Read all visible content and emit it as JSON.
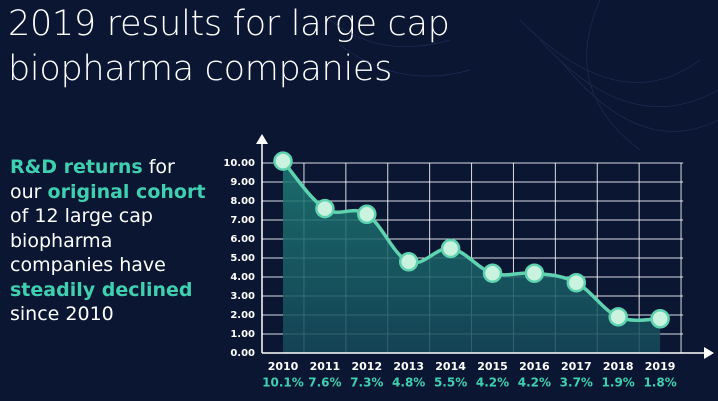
{
  "title_lines": [
    "2019 results for large cap",
    "biopharma companies"
  ],
  "text_block": {
    "lines": [
      [
        {
          "text": "R&D returns",
          "highlight": true
        },
        {
          "text": " for",
          "highlight": false
        }
      ],
      [
        {
          "text": "our ",
          "highlight": false
        },
        {
          "text": "original cohort",
          "highlight": true
        }
      ],
      [
        {
          "text": "of 12 large cap",
          "highlight": false
        }
      ],
      [
        {
          "text": "biopharma",
          "highlight": false
        }
      ],
      [
        {
          "text": "companies have",
          "highlight": false
        }
      ],
      [
        {
          "text": "steadily declined",
          "highlight": true
        }
      ],
      [
        {
          "text": "since 2010",
          "highlight": false
        }
      ]
    ]
  },
  "chart_data": {
    "type": "area",
    "categories": [
      "2010",
      "2011",
      "2012",
      "2013",
      "2014",
      "2015",
      "2016",
      "2017",
      "2018",
      "2019"
    ],
    "values": [
      10.1,
      7.6,
      7.3,
      4.8,
      5.5,
      4.2,
      4.2,
      3.7,
      1.9,
      1.8
    ],
    "value_labels": [
      "10.1%",
      "7.6%",
      "7.3%",
      "4.8%",
      "5.5%",
      "4.2%",
      "4.2%",
      "3.7%",
      "1.9%",
      "1.8%"
    ],
    "color": "#5fd3b0",
    "ylim": [
      0,
      10
    ],
    "yticks": [
      {
        "value": 0,
        "label": "0.00"
      },
      {
        "value": 1,
        "label": "1.00"
      },
      {
        "value": 2,
        "label": "2.00"
      },
      {
        "value": 3,
        "label": "3.00"
      },
      {
        "value": 4,
        "label": "4.00"
      },
      {
        "value": 5,
        "label": "5.00"
      },
      {
        "value": 6,
        "label": "6.00"
      },
      {
        "value": 7,
        "label": "7.00"
      },
      {
        "value": 8,
        "label": "8.00"
      },
      {
        "value": 9,
        "label": "9.00"
      },
      {
        "value": 10,
        "label": "10.00"
      }
    ],
    "grid": true
  }
}
